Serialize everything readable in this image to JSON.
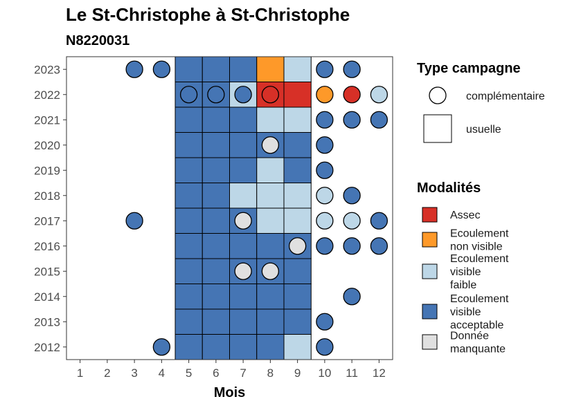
{
  "chart_data": {
    "type": "heatmap",
    "title": "Le St-Christophe à St-Christophe",
    "subtitle": "N8220031",
    "xlabel": "Mois",
    "ylabel": "",
    "x_ticks": [
      "1",
      "2",
      "3",
      "4",
      "5",
      "6",
      "7",
      "8",
      "9",
      "10",
      "11",
      "12"
    ],
    "y_ticks": [
      "2012",
      "2013",
      "2014",
      "2015",
      "2016",
      "2017",
      "2018",
      "2019",
      "2020",
      "2021",
      "2022",
      "2023"
    ],
    "grid": false,
    "legend_position": "right",
    "legend_shape": {
      "title": "Type campagne",
      "entries": [
        {
          "key": "complementaire",
          "label": "complémentaire",
          "shape": "circle"
        },
        {
          "key": "usuelle",
          "label": "usuelle",
          "shape": "square"
        }
      ]
    },
    "legend_color": {
      "title": "Modalités",
      "entries": [
        {
          "key": "assec",
          "lines": [
            "Assec"
          ],
          "color": "#d73027"
        },
        {
          "key": "nonvisible",
          "lines": [
            "Ecoulement",
            "non visible"
          ],
          "color": "#fe9929"
        },
        {
          "key": "faible",
          "lines": [
            "Ecoulement",
            "visible",
            "faible"
          ],
          "color": "#bdd7e7"
        },
        {
          "key": "acceptable",
          "lines": [
            "Ecoulement",
            "visible",
            "acceptable"
          ],
          "color": "#4575b4"
        },
        {
          "key": "manquante",
          "lines": [
            "Donnée",
            "manquante"
          ],
          "color": "#e0e0e0"
        }
      ]
    },
    "squares": [
      {
        "year": 2023,
        "month": 5,
        "modalite": "acceptable"
      },
      {
        "year": 2023,
        "month": 6,
        "modalite": "acceptable"
      },
      {
        "year": 2023,
        "month": 7,
        "modalite": "acceptable"
      },
      {
        "year": 2023,
        "month": 8,
        "modalite": "nonvisible"
      },
      {
        "year": 2023,
        "month": 9,
        "modalite": "faible"
      },
      {
        "year": 2022,
        "month": 5,
        "modalite": "acceptable"
      },
      {
        "year": 2022,
        "month": 6,
        "modalite": "acceptable"
      },
      {
        "year": 2022,
        "month": 7,
        "modalite": "faible"
      },
      {
        "year": 2022,
        "month": 8,
        "modalite": "assec"
      },
      {
        "year": 2022,
        "month": 9,
        "modalite": "assec"
      },
      {
        "year": 2021,
        "month": 5,
        "modalite": "acceptable"
      },
      {
        "year": 2021,
        "month": 6,
        "modalite": "acceptable"
      },
      {
        "year": 2021,
        "month": 7,
        "modalite": "acceptable"
      },
      {
        "year": 2021,
        "month": 8,
        "modalite": "faible"
      },
      {
        "year": 2021,
        "month": 9,
        "modalite": "faible"
      },
      {
        "year": 2020,
        "month": 5,
        "modalite": "acceptable"
      },
      {
        "year": 2020,
        "month": 6,
        "modalite": "acceptable"
      },
      {
        "year": 2020,
        "month": 7,
        "modalite": "acceptable"
      },
      {
        "year": 2020,
        "month": 8,
        "modalite": "acceptable"
      },
      {
        "year": 2020,
        "month": 9,
        "modalite": "acceptable"
      },
      {
        "year": 2019,
        "month": 5,
        "modalite": "acceptable"
      },
      {
        "year": 2019,
        "month": 6,
        "modalite": "acceptable"
      },
      {
        "year": 2019,
        "month": 7,
        "modalite": "acceptable"
      },
      {
        "year": 2019,
        "month": 8,
        "modalite": "faible"
      },
      {
        "year": 2019,
        "month": 9,
        "modalite": "acceptable"
      },
      {
        "year": 2018,
        "month": 5,
        "modalite": "acceptable"
      },
      {
        "year": 2018,
        "month": 6,
        "modalite": "acceptable"
      },
      {
        "year": 2018,
        "month": 7,
        "modalite": "faible"
      },
      {
        "year": 2018,
        "month": 8,
        "modalite": "faible"
      },
      {
        "year": 2018,
        "month": 9,
        "modalite": "faible"
      },
      {
        "year": 2017,
        "month": 5,
        "modalite": "acceptable"
      },
      {
        "year": 2017,
        "month": 6,
        "modalite": "acceptable"
      },
      {
        "year": 2017,
        "month": 7,
        "modalite": "acceptable"
      },
      {
        "year": 2017,
        "month": 8,
        "modalite": "faible"
      },
      {
        "year": 2017,
        "month": 9,
        "modalite": "faible"
      },
      {
        "year": 2016,
        "month": 5,
        "modalite": "acceptable"
      },
      {
        "year": 2016,
        "month": 6,
        "modalite": "acceptable"
      },
      {
        "year": 2016,
        "month": 7,
        "modalite": "acceptable"
      },
      {
        "year": 2016,
        "month": 8,
        "modalite": "acceptable"
      },
      {
        "year": 2016,
        "month": 9,
        "modalite": "acceptable"
      },
      {
        "year": 2015,
        "month": 5,
        "modalite": "acceptable"
      },
      {
        "year": 2015,
        "month": 6,
        "modalite": "acceptable"
      },
      {
        "year": 2015,
        "month": 7,
        "modalite": "acceptable"
      },
      {
        "year": 2015,
        "month": 8,
        "modalite": "acceptable"
      },
      {
        "year": 2015,
        "month": 9,
        "modalite": "acceptable"
      },
      {
        "year": 2014,
        "month": 5,
        "modalite": "acceptable"
      },
      {
        "year": 2014,
        "month": 6,
        "modalite": "acceptable"
      },
      {
        "year": 2014,
        "month": 7,
        "modalite": "acceptable"
      },
      {
        "year": 2014,
        "month": 8,
        "modalite": "acceptable"
      },
      {
        "year": 2014,
        "month": 9,
        "modalite": "acceptable"
      },
      {
        "year": 2013,
        "month": 5,
        "modalite": "acceptable"
      },
      {
        "year": 2013,
        "month": 6,
        "modalite": "acceptable"
      },
      {
        "year": 2013,
        "month": 7,
        "modalite": "acceptable"
      },
      {
        "year": 2013,
        "month": 8,
        "modalite": "acceptable"
      },
      {
        "year": 2013,
        "month": 9,
        "modalite": "acceptable"
      },
      {
        "year": 2012,
        "month": 5,
        "modalite": "acceptable"
      },
      {
        "year": 2012,
        "month": 6,
        "modalite": "acceptable"
      },
      {
        "year": 2012,
        "month": 7,
        "modalite": "acceptable"
      },
      {
        "year": 2012,
        "month": 8,
        "modalite": "acceptable"
      },
      {
        "year": 2012,
        "month": 9,
        "modalite": "faible"
      }
    ],
    "circles": [
      {
        "year": 2023,
        "month": 3,
        "modalite": "acceptable"
      },
      {
        "year": 2023,
        "month": 4,
        "modalite": "acceptable"
      },
      {
        "year": 2023,
        "month": 10,
        "modalite": "acceptable"
      },
      {
        "year": 2023,
        "month": 11,
        "modalite": "acceptable"
      },
      {
        "year": 2022,
        "month": 5,
        "modalite": "acceptable"
      },
      {
        "year": 2022,
        "month": 6,
        "modalite": "acceptable"
      },
      {
        "year": 2022,
        "month": 7,
        "modalite": "acceptable"
      },
      {
        "year": 2022,
        "month": 8,
        "modalite": "assec"
      },
      {
        "year": 2022,
        "month": 10,
        "modalite": "nonvisible"
      },
      {
        "year": 2022,
        "month": 11,
        "modalite": "assec"
      },
      {
        "year": 2022,
        "month": 12,
        "modalite": "faible"
      },
      {
        "year": 2021,
        "month": 10,
        "modalite": "acceptable"
      },
      {
        "year": 2021,
        "month": 11,
        "modalite": "acceptable"
      },
      {
        "year": 2021,
        "month": 12,
        "modalite": "acceptable"
      },
      {
        "year": 2020,
        "month": 8,
        "modalite": "manquante"
      },
      {
        "year": 2020,
        "month": 10,
        "modalite": "acceptable"
      },
      {
        "year": 2019,
        "month": 10,
        "modalite": "acceptable"
      },
      {
        "year": 2018,
        "month": 10,
        "modalite": "faible"
      },
      {
        "year": 2018,
        "month": 11,
        "modalite": "acceptable"
      },
      {
        "year": 2017,
        "month": 3,
        "modalite": "acceptable"
      },
      {
        "year": 2017,
        "month": 7,
        "modalite": "manquante"
      },
      {
        "year": 2017,
        "month": 10,
        "modalite": "faible"
      },
      {
        "year": 2017,
        "month": 11,
        "modalite": "faible"
      },
      {
        "year": 2017,
        "month": 12,
        "modalite": "acceptable"
      },
      {
        "year": 2016,
        "month": 9,
        "modalite": "manquante"
      },
      {
        "year": 2016,
        "month": 10,
        "modalite": "acceptable"
      },
      {
        "year": 2016,
        "month": 11,
        "modalite": "acceptable"
      },
      {
        "year": 2016,
        "month": 12,
        "modalite": "acceptable"
      },
      {
        "year": 2015,
        "month": 7,
        "modalite": "manquante"
      },
      {
        "year": 2015,
        "month": 8,
        "modalite": "manquante"
      },
      {
        "year": 2014,
        "month": 11,
        "modalite": "acceptable"
      },
      {
        "year": 2013,
        "month": 10,
        "modalite": "acceptable"
      },
      {
        "year": 2012,
        "month": 4,
        "modalite": "acceptable"
      },
      {
        "year": 2012,
        "month": 10,
        "modalite": "acceptable"
      }
    ]
  }
}
